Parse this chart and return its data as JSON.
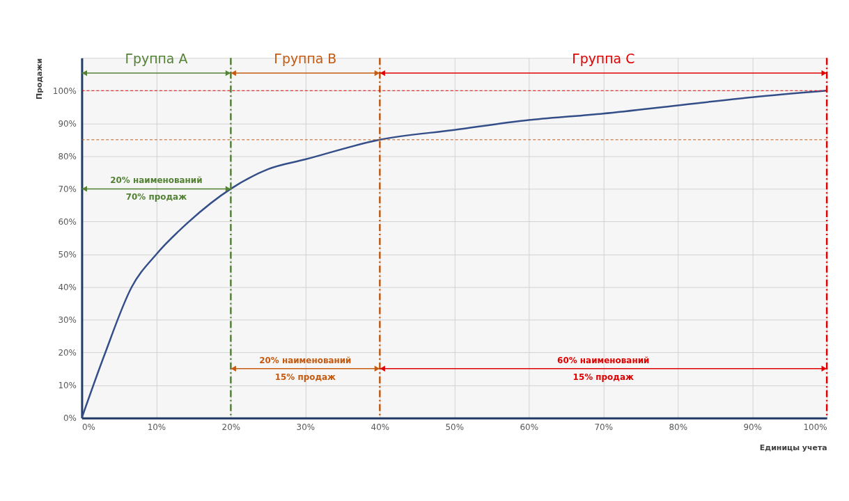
{
  "chart_data": {
    "type": "line",
    "xlabel": "Единицы учета",
    "ylabel": "Продажи",
    "x": [
      0,
      3,
      6.7,
      10,
      14.4,
      20,
      25,
      30,
      40,
      50,
      60,
      70,
      80,
      90,
      100
    ],
    "series": [
      {
        "color": "#2f4b8a",
        "values": [
          0,
          19,
          40,
          50,
          60,
          70,
          76,
          79,
          85,
          88,
          91,
          93,
          95.5,
          98,
          100
        ]
      }
    ],
    "xlim": [
      0,
      100
    ],
    "xticks": [
      {
        "value": 0,
        "label": "0%"
      },
      {
        "value": 10,
        "label": "10%"
      },
      {
        "value": 20,
        "label": "20%"
      },
      {
        "value": 30,
        "label": "30%"
      },
      {
        "value": 40,
        "label": "40%"
      },
      {
        "value": 50,
        "label": "50%"
      },
      {
        "value": 60,
        "label": "60%"
      },
      {
        "value": 70,
        "label": "70%"
      },
      {
        "value": 80,
        "label": "80%"
      },
      {
        "value": 90,
        "label": "90%"
      },
      {
        "value": 100,
        "label": "100%"
      }
    ],
    "ylim": [
      0,
      110
    ],
    "yticks": [
      {
        "value": 0,
        "label": "0%"
      },
      {
        "value": 10,
        "label": "10%"
      },
      {
        "value": 20,
        "label": "20%"
      },
      {
        "value": 30,
        "label": "30%"
      },
      {
        "value": 40,
        "label": "40%"
      },
      {
        "value": 50,
        "label": "50%"
      },
      {
        "value": 60,
        "label": "60%"
      },
      {
        "value": 70,
        "label": "70%"
      },
      {
        "value": 80,
        "label": "80%"
      },
      {
        "value": 90,
        "label": "90%"
      },
      {
        "value": 100,
        "label": "100%"
      }
    ],
    "grid": true,
    "marker": "none",
    "line_style": "solid",
    "ref_lines": [
      {
        "axis": "x",
        "value": 20,
        "color": "#548235",
        "line_style": "dashed"
      },
      {
        "axis": "x",
        "value": 40,
        "color": "#c55a11",
        "line_style": "dashed"
      },
      {
        "axis": "x",
        "value": 100,
        "color": "#e00000",
        "line_style": "dashed"
      },
      {
        "axis": "y",
        "value": 100,
        "color": "#e00000",
        "line_style": "dotted"
      },
      {
        "axis": "y",
        "value": 85,
        "color": "#c55a11",
        "line_style": "dotted"
      }
    ],
    "bands": [
      {
        "axis": "x",
        "from": 0,
        "to": 20,
        "label": "Группа A"
      },
      {
        "axis": "x",
        "from": 20,
        "to": 40,
        "label": "Группа B"
      },
      {
        "axis": "x",
        "from": 40,
        "to": 100,
        "label": "Группа C"
      }
    ],
    "annotations": [
      "20% наименований",
      "70% продаж",
      "20% наименований",
      "15% продаж",
      "60% наименований",
      "15% продаж"
    ]
  }
}
